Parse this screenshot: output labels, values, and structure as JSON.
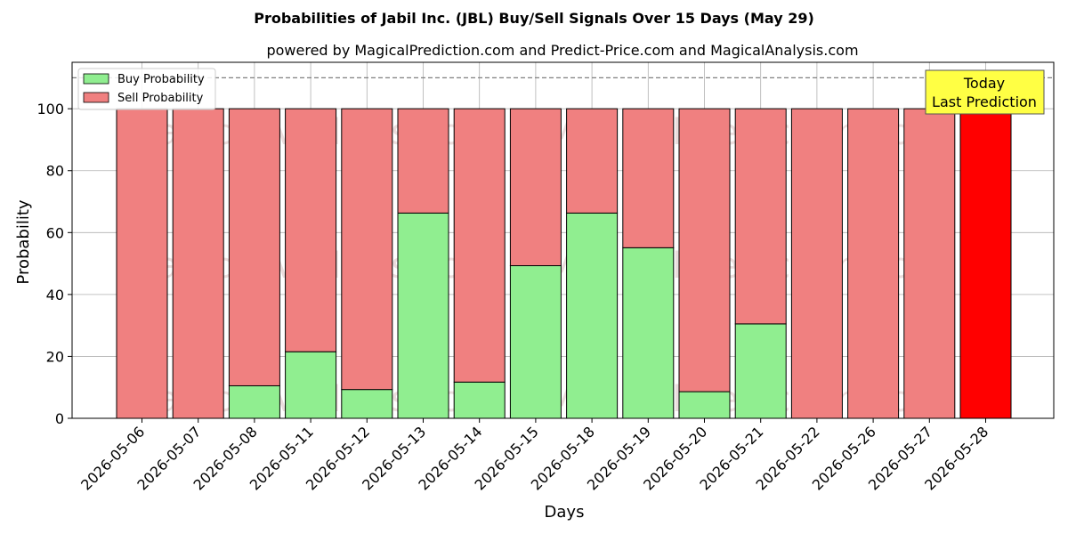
{
  "chart_data": {
    "type": "bar",
    "stacked": true,
    "title": "Probabilities of Jabil Inc. (JBL) Buy/Sell Signals Over 15 Days (May 29)",
    "subtitle": "powered by MagicalPrediction.com and Predict-Price.com and MagicalAnalysis.com",
    "xlabel": "Days",
    "ylabel": "Probability",
    "ylim": [
      0,
      115
    ],
    "yticks": [
      0,
      20,
      40,
      60,
      80,
      100
    ],
    "reference_line": 110,
    "grid": true,
    "legend_position": "top-left",
    "categories": [
      "2026-05-06",
      "2026-05-07",
      "2026-05-08",
      "2026-05-11",
      "2026-05-12",
      "2026-05-13",
      "2026-05-14",
      "2026-05-15",
      "2026-05-18",
      "2026-05-19",
      "2026-05-20",
      "2026-05-21",
      "2026-05-22",
      "2026-05-26",
      "2026-05-27",
      "2026-05-28"
    ],
    "series": [
      {
        "name": "Buy Probability",
        "color": "#90ee90",
        "values": [
          0,
          0,
          10.5,
          21.5,
          9.3,
          66.3,
          11.7,
          49.3,
          66.3,
          55.1,
          8.6,
          30.5,
          0,
          0,
          0,
          0
        ]
      },
      {
        "name": "Sell Probability",
        "color": "#f08080",
        "values": [
          100,
          100,
          89.5,
          78.5,
          90.7,
          33.7,
          88.3,
          50.7,
          33.7,
          44.9,
          91.4,
          69.5,
          100,
          100,
          100,
          100
        ]
      }
    ],
    "highlight": {
      "index": 15,
      "color": "#ff0000"
    },
    "annotation": {
      "line1": "Today",
      "line2": "Last Prediction",
      "color": "#ffff44"
    },
    "watermarks": [
      "MagicalAnalysis.com",
      "MagicalPrediction.com"
    ]
  }
}
